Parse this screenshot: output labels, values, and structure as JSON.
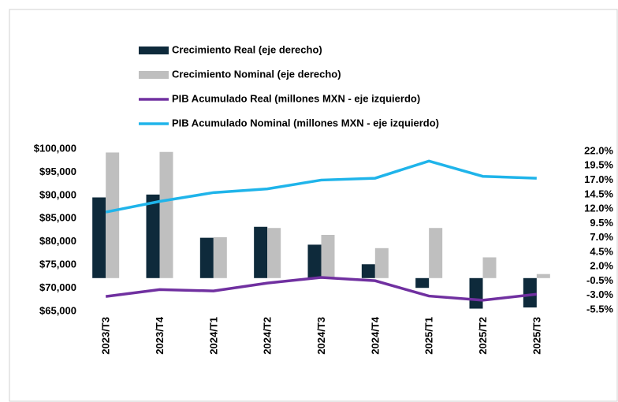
{
  "chart_data": {
    "type": "bar_line",
    "categories": [
      "2023/T3",
      "2023/T4",
      "2024/T1",
      "2024/T2",
      "2024/T3",
      "2024/T4",
      "2025/T1",
      "2025/T2",
      "2025/T3"
    ],
    "series": [
      {
        "name": "Crecimiento Real (eje derecho)",
        "color": "#0e2a3b",
        "kind": "bar",
        "axis": "y2",
        "values": [
          14.0,
          14.5,
          7.0,
          8.9,
          5.8,
          2.4,
          -1.7,
          -5.3,
          -5.1
        ]
      },
      {
        "name": "Crecimiento Nominal (eje derecho)",
        "color": "#bfbfbf",
        "kind": "bar",
        "axis": "y2",
        "values": [
          21.8,
          21.9,
          7.1,
          8.7,
          7.5,
          5.2,
          8.7,
          3.6,
          0.7
        ]
      },
      {
        "name": "PIB Acumulado Real (millones MXN - eje izquierdo)",
        "color": "#7030a0",
        "kind": "line",
        "values": [
          68200,
          69700,
          69400,
          71100,
          72300,
          71600,
          68300,
          67400,
          68700
        ]
      },
      {
        "name": "PIB Acumulado Nominal (millones MXN - eje izquierdo)",
        "color": "#1fb4ea",
        "kind": "line",
        "values": [
          86400,
          88700,
          90600,
          91400,
          93300,
          93700,
          97400,
          94100,
          93700
        ]
      }
    ],
    "ylim": [
      65000,
      100000
    ],
    "yticks": [
      {
        "value": 65000,
        "label": "$65,000"
      },
      {
        "value": 70000,
        "label": "$70,000"
      },
      {
        "value": 75000,
        "label": "$75,000"
      },
      {
        "value": 80000,
        "label": "$80,000"
      },
      {
        "value": 85000,
        "label": "$85,000"
      },
      {
        "value": 90000,
        "label": "$90,000"
      },
      {
        "value": 95000,
        "label": "$95,000"
      },
      {
        "value": 100000,
        "label": "$100,000"
      }
    ],
    "y2lim": [
      -5.5,
      22.0
    ],
    "y2ticks": [
      {
        "value": 22.0,
        "label": "22.0%"
      },
      {
        "value": 19.5,
        "label": "19.5%"
      },
      {
        "value": 17.0,
        "label": "17.0%"
      },
      {
        "value": 14.5,
        "label": "14.5%"
      },
      {
        "value": 12.0,
        "label": "12.0%"
      },
      {
        "value": 9.5,
        "label": "9.5%"
      },
      {
        "value": 7.0,
        "label": "7.0%"
      },
      {
        "value": 4.5,
        "label": "4.5%"
      },
      {
        "value": 2.0,
        "label": "2.0%"
      },
      {
        "value": -0.5,
        "label": "-0.5%"
      },
      {
        "value": -3.0,
        "label": "-3.0%"
      },
      {
        "value": -5.5,
        "label": "-5.5%"
      }
    ]
  }
}
